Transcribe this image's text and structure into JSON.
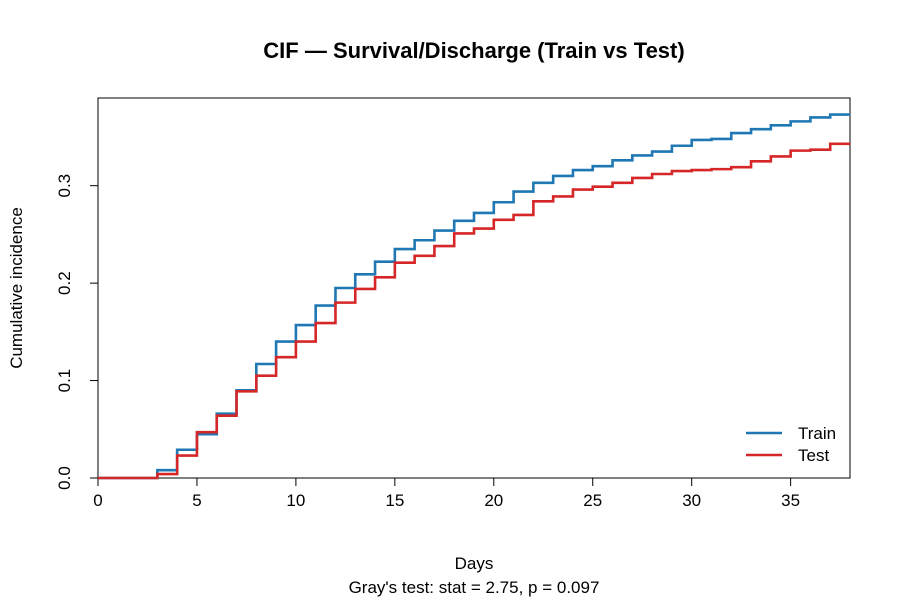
{
  "chart_data": {
    "type": "line",
    "step": true,
    "title": "CIF — Survival/Discharge (Train vs Test)",
    "xlabel": "Days",
    "ylabel": "Cumulative incidence",
    "subtitle": "Gray's test: stat = 2.75, p = 0.097",
    "xlim": [
      0,
      38
    ],
    "ylim": [
      0,
      0.39
    ],
    "xticks": [
      "0",
      "5",
      "10",
      "15",
      "20",
      "25",
      "30",
      "35"
    ],
    "yticks": [
      "0.0",
      "0.1",
      "0.2",
      "0.3"
    ],
    "legend": {
      "position": "bottom-right"
    },
    "series": [
      {
        "name": "Train",
        "color": "#1f77b4",
        "x": [
          0,
          3,
          4,
          5,
          6,
          7,
          8,
          9,
          10,
          11,
          12,
          13,
          14,
          15,
          16,
          17,
          18,
          19,
          20,
          21,
          22,
          23,
          24,
          25,
          26,
          27,
          28,
          29,
          30,
          31,
          32,
          33,
          34,
          35,
          36,
          37,
          38
        ],
        "y": [
          0,
          0.008,
          0.029,
          0.045,
          0.066,
          0.09,
          0.117,
          0.14,
          0.157,
          0.177,
          0.195,
          0.209,
          0.222,
          0.235,
          0.244,
          0.254,
          0.264,
          0.272,
          0.283,
          0.294,
          0.303,
          0.31,
          0.316,
          0.32,
          0.326,
          0.331,
          0.335,
          0.341,
          0.347,
          0.348,
          0.354,
          0.358,
          0.362,
          0.366,
          0.37,
          0.373,
          0.373
        ]
      },
      {
        "name": "Test",
        "color": "#d62728",
        "x": [
          0,
          3,
          4,
          5,
          6,
          7,
          8,
          9,
          10,
          11,
          12,
          13,
          14,
          15,
          16,
          17,
          18,
          19,
          20,
          21,
          22,
          23,
          24,
          25,
          26,
          27,
          28,
          29,
          30,
          31,
          32,
          33,
          34,
          35,
          36,
          37,
          38
        ],
        "y": [
          0,
          0.004,
          0.023,
          0.047,
          0.064,
          0.089,
          0.105,
          0.124,
          0.14,
          0.159,
          0.18,
          0.194,
          0.206,
          0.221,
          0.228,
          0.238,
          0.251,
          0.256,
          0.265,
          0.27,
          0.284,
          0.289,
          0.296,
          0.299,
          0.303,
          0.308,
          0.312,
          0.315,
          0.316,
          0.317,
          0.319,
          0.325,
          0.33,
          0.336,
          0.337,
          0.343,
          0.343
        ]
      }
    ]
  }
}
